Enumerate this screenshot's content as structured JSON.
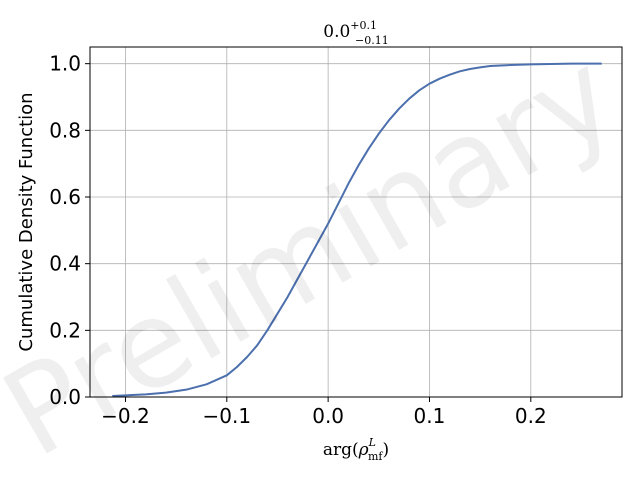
{
  "chart_data": {
    "type": "line",
    "title": {
      "base": "0.0",
      "sup": "+0.1",
      "sub": "−0.11"
    },
    "xlabel": {
      "func": "arg(",
      "var": "ρ",
      "sup": "L",
      "sub": "mf",
      "close": ")"
    },
    "ylabel": "Cumulative Density Function",
    "watermark": "Preliminary",
    "xlim": [
      -0.235,
      0.29
    ],
    "ylim": [
      0.0,
      1.05
    ],
    "xticks": [
      -0.2,
      -0.1,
      0.0,
      0.1,
      0.2
    ],
    "xtick_labels": [
      "−0.2",
      "−0.1",
      "0.0",
      "0.1",
      "0.2"
    ],
    "yticks": [
      0.0,
      0.2,
      0.4,
      0.6,
      0.8,
      1.0
    ],
    "ytick_labels": [
      "0.0",
      "0.2",
      "0.4",
      "0.6",
      "0.8",
      "1.0"
    ],
    "grid": true,
    "series": [
      {
        "color": "#4c6fad",
        "x": [
          -0.213,
          -0.2,
          -0.18,
          -0.16,
          -0.14,
          -0.12,
          -0.1,
          -0.09,
          -0.08,
          -0.07,
          -0.06,
          -0.05,
          -0.04,
          -0.03,
          -0.02,
          -0.01,
          0.0,
          0.01,
          0.02,
          0.03,
          0.04,
          0.05,
          0.06,
          0.07,
          0.08,
          0.09,
          0.1,
          0.11,
          0.12,
          0.13,
          0.14,
          0.15,
          0.16,
          0.18,
          0.2,
          0.22,
          0.24,
          0.27
        ],
        "y": [
          0.003,
          0.005,
          0.008,
          0.013,
          0.022,
          0.038,
          0.065,
          0.09,
          0.12,
          0.155,
          0.2,
          0.25,
          0.3,
          0.355,
          0.41,
          0.465,
          0.52,
          0.58,
          0.64,
          0.695,
          0.745,
          0.79,
          0.83,
          0.865,
          0.895,
          0.92,
          0.94,
          0.955,
          0.967,
          0.977,
          0.984,
          0.989,
          0.993,
          0.996,
          0.998,
          0.999,
          1.0,
          1.0
        ]
      }
    ]
  }
}
